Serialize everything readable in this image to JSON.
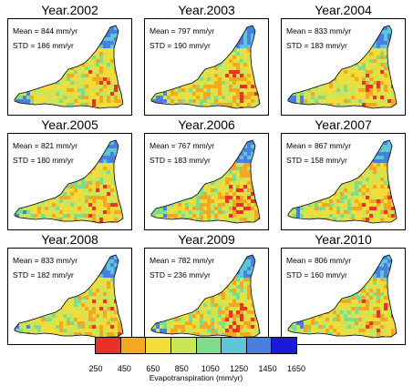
{
  "legend": {
    "title": "Evapotranspiration (mm/yr)",
    "ticks": [
      "250",
      "450",
      "650",
      "850",
      "1050",
      "1250",
      "1450",
      "1650"
    ],
    "colors": [
      "#e8312a",
      "#f5a623",
      "#f2dc3a",
      "#c8e65a",
      "#7fdc8c",
      "#5fc6d8",
      "#4a7fe0",
      "#1a1ad8"
    ]
  },
  "panels": [
    {
      "year": "Year.2002",
      "mean": "Mean = 844 mm/yr",
      "std": "STD = 186 mm/yr",
      "mean_value": 844
    },
    {
      "year": "Year.2003",
      "mean": "Mean = 797 mm/yr",
      "std": "STD = 190 mm/yr",
      "mean_value": 797
    },
    {
      "year": "Year.2004",
      "mean": "Mean = 833 mm/yr",
      "std": "STD = 183 mm/yr",
      "mean_value": 833
    },
    {
      "year": "Year.2005",
      "mean": "Mean = 821 mm/yr",
      "std": "STD = 180 mm/yr",
      "mean_value": 821
    },
    {
      "year": "Year.2006",
      "mean": "Mean = 767 mm/yr",
      "std": "STD = 183 mm/yr",
      "mean_value": 767
    },
    {
      "year": "Year.2007",
      "mean": "Mean = 867 mm/yr",
      "std": "STD = 158 mm/yr",
      "mean_value": 867
    },
    {
      "year": "Year.2008",
      "mean": "Mean = 833 mm/yr",
      "std": "STD = 182 mm/yr",
      "mean_value": 833
    },
    {
      "year": "Year.2009",
      "mean": "Mean = 782 mm/yr",
      "std": "STD = 236 mm/yr",
      "mean_value": 782
    },
    {
      "year": "Year.2010",
      "mean": "Mean = 806 mm/yr",
      "std": "STD = 160 mm/yr",
      "mean_value": 806
    }
  ]
}
